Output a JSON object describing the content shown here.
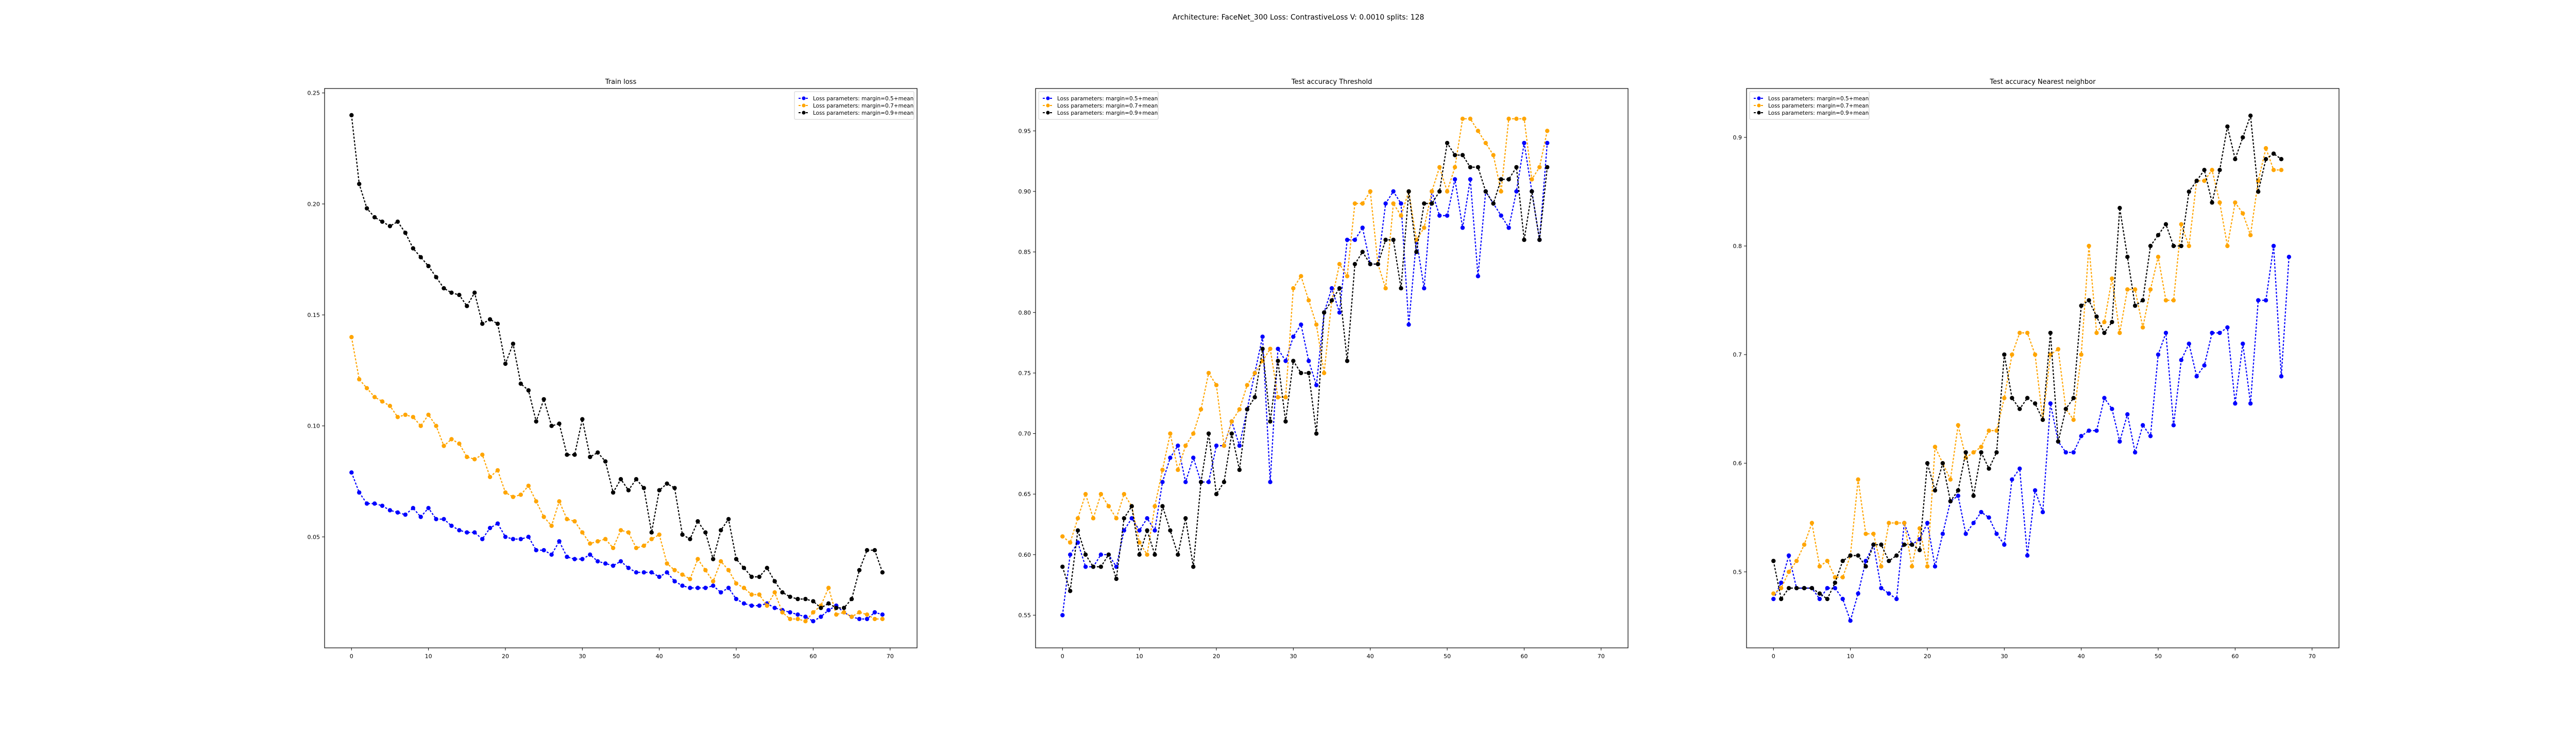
{
  "figure": {
    "suptitle": "Architecture: FaceNet_300 Loss: ContrastiveLoss V: 0.0010 splits: 128"
  },
  "chart_data": [
    {
      "type": "line",
      "title": "Train loss",
      "xlabel": "",
      "ylabel": "",
      "xlim": [
        -3.5,
        73.5
      ],
      "ylim": [
        0.0,
        0.252
      ],
      "xticks": [
        0,
        10,
        20,
        30,
        40,
        50,
        60,
        70
      ],
      "yticks": [
        0.05,
        0.1,
        0.15,
        0.2,
        0.25
      ],
      "ytick_format": 2,
      "legend": "top-right",
      "grid": false,
      "series": [
        {
          "name": "Loss parameters: margin=0.5+mean",
          "color": "#0000ff",
          "values": [
            0.079,
            0.07,
            0.065,
            0.065,
            0.064,
            0.062,
            0.061,
            0.06,
            0.063,
            0.059,
            0.063,
            0.058,
            0.058,
            0.055,
            0.053,
            0.052,
            0.052,
            0.049,
            0.054,
            0.056,
            0.05,
            0.049,
            0.049,
            0.05,
            0.044,
            0.044,
            0.042,
            0.048,
            0.041,
            0.04,
            0.04,
            0.042,
            0.039,
            0.038,
            0.037,
            0.039,
            0.036,
            0.034,
            0.034,
            0.034,
            0.032,
            0.034,
            0.03,
            0.028,
            0.027,
            0.027,
            0.027,
            0.028,
            0.025,
            0.027,
            0.022,
            0.02,
            0.019,
            0.019,
            0.02,
            0.018,
            0.017,
            0.016,
            0.015,
            0.014,
            0.012,
            0.014,
            0.017,
            0.019,
            0.016,
            0.014,
            0.013,
            0.013,
            0.016,
            0.015
          ]
        },
        {
          "name": "Loss parameters: margin=0.7+mean",
          "color": "#ffa500",
          "values": [
            0.14,
            0.121,
            0.117,
            0.113,
            0.111,
            0.109,
            0.104,
            0.105,
            0.104,
            0.1,
            0.105,
            0.1,
            0.091,
            0.094,
            0.092,
            0.086,
            0.085,
            0.087,
            0.077,
            0.08,
            0.07,
            0.068,
            0.069,
            0.073,
            0.066,
            0.059,
            0.055,
            0.066,
            0.058,
            0.057,
            0.052,
            0.047,
            0.048,
            0.049,
            0.045,
            0.053,
            0.052,
            0.045,
            0.046,
            0.049,
            0.051,
            0.038,
            0.035,
            0.033,
            0.031,
            0.04,
            0.035,
            0.03,
            0.039,
            0.035,
            0.029,
            0.027,
            0.024,
            0.024,
            0.019,
            0.025,
            0.016,
            0.013,
            0.013,
            0.012,
            0.016,
            0.019,
            0.027,
            0.015,
            0.016,
            0.014,
            0.016,
            0.015,
            0.013,
            0.013
          ]
        },
        {
          "name": "Loss parameters: margin=0.9+mean",
          "color": "#000000",
          "values": [
            0.24,
            0.209,
            0.198,
            0.194,
            0.192,
            0.19,
            0.192,
            0.187,
            0.18,
            0.176,
            0.172,
            0.167,
            0.162,
            0.16,
            0.159,
            0.154,
            0.16,
            0.146,
            0.148,
            0.146,
            0.128,
            0.137,
            0.119,
            0.116,
            0.102,
            0.112,
            0.1,
            0.101,
            0.087,
            0.087,
            0.103,
            0.086,
            0.088,
            0.084,
            0.07,
            0.076,
            0.071,
            0.076,
            0.072,
            0.052,
            0.071,
            0.074,
            0.072,
            0.051,
            0.049,
            0.057,
            0.052,
            0.04,
            0.053,
            0.058,
            0.04,
            0.036,
            0.032,
            0.032,
            0.036,
            0.03,
            0.025,
            0.023,
            0.022,
            0.022,
            0.021,
            0.018,
            0.02,
            0.018,
            0.018,
            0.022,
            0.035,
            0.044,
            0.044,
            0.034
          ]
        }
      ]
    },
    {
      "type": "line",
      "title": "Test accuracy Threshold",
      "xlabel": "",
      "ylabel": "",
      "xlim": [
        -3.5,
        73.5
      ],
      "ylim": [
        0.523,
        0.985
      ],
      "xticks": [
        0,
        10,
        20,
        30,
        40,
        50,
        60,
        70
      ],
      "yticks": [
        0.55,
        0.6,
        0.65,
        0.7,
        0.75,
        0.8,
        0.85,
        0.9,
        0.95
      ],
      "ytick_format": 2,
      "legend": "top-left",
      "grid": false,
      "series": [
        {
          "name": "Loss parameters: margin=0.5+mean",
          "color": "#0000ff",
          "values": [
            0.55,
            0.6,
            0.61,
            0.59,
            0.59,
            0.6,
            0.6,
            0.59,
            0.62,
            0.63,
            0.62,
            0.63,
            0.62,
            0.66,
            0.68,
            0.69,
            0.66,
            0.68,
            0.66,
            0.66,
            0.69,
            0.69,
            0.71,
            0.69,
            0.72,
            0.75,
            0.78,
            0.66,
            0.77,
            0.76,
            0.78,
            0.79,
            0.76,
            0.74,
            0.8,
            0.82,
            0.8,
            0.86,
            0.86,
            0.87,
            0.84,
            0.84,
            0.89,
            0.9,
            0.89,
            0.79,
            0.86,
            0.82,
            0.9,
            0.88,
            0.88,
            0.91,
            0.87,
            0.91,
            0.83,
            0.9,
            0.89,
            0.88,
            0.87,
            0.9,
            0.94,
            0.9,
            0.86,
            0.94
          ]
        },
        {
          "name": "Loss parameters: margin=0.7+mean",
          "color": "#ffa500",
          "values": [
            0.615,
            0.61,
            0.63,
            0.65,
            0.63,
            0.65,
            0.64,
            0.63,
            0.65,
            0.64,
            0.61,
            0.6,
            0.64,
            0.67,
            0.7,
            0.67,
            0.69,
            0.7,
            0.72,
            0.75,
            0.74,
            0.69,
            0.71,
            0.72,
            0.74,
            0.75,
            0.76,
            0.77,
            0.73,
            0.73,
            0.82,
            0.83,
            0.81,
            0.79,
            0.75,
            0.81,
            0.84,
            0.83,
            0.89,
            0.89,
            0.9,
            0.84,
            0.82,
            0.89,
            0.88,
            0.9,
            0.86,
            0.87,
            0.9,
            0.92,
            0.9,
            0.92,
            0.96,
            0.96,
            0.95,
            0.94,
            0.93,
            0.9,
            0.96,
            0.96,
            0.96,
            0.91,
            0.92,
            0.95
          ]
        },
        {
          "name": "Loss parameters: margin=0.9+mean",
          "color": "#000000",
          "values": [
            0.59,
            0.57,
            0.62,
            0.6,
            0.59,
            0.59,
            0.6,
            0.58,
            0.63,
            0.64,
            0.6,
            0.62,
            0.6,
            0.64,
            0.62,
            0.6,
            0.63,
            0.59,
            0.66,
            0.7,
            0.65,
            0.66,
            0.7,
            0.67,
            0.72,
            0.73,
            0.77,
            0.71,
            0.76,
            0.71,
            0.76,
            0.75,
            0.75,
            0.7,
            0.8,
            0.81,
            0.82,
            0.76,
            0.84,
            0.85,
            0.84,
            0.84,
            0.86,
            0.86,
            0.82,
            0.9,
            0.85,
            0.89,
            0.89,
            0.9,
            0.94,
            0.93,
            0.93,
            0.92,
            0.92,
            0.9,
            0.89,
            0.91,
            0.91,
            0.92,
            0.86,
            0.9,
            0.86,
            0.92
          ]
        }
      ]
    },
    {
      "type": "line",
      "title": "Test accuracy Nearest neighbor",
      "xlabel": "",
      "ylabel": "",
      "xlim": [
        -3.5,
        73.5
      ],
      "ylim": [
        0.43,
        0.945
      ],
      "xticks": [
        0,
        10,
        20,
        30,
        40,
        50,
        60,
        70
      ],
      "yticks": [
        0.5,
        0.6,
        0.7,
        0.8,
        0.9
      ],
      "ytick_format": 1,
      "legend": "top-left",
      "grid": false,
      "series": [
        {
          "name": "Loss parameters: margin=0.5+mean",
          "color": "#0000ff",
          "values": [
            0.475,
            0.49,
            0.515,
            0.485,
            0.485,
            0.485,
            0.475,
            0.485,
            0.485,
            0.475,
            0.455,
            0.48,
            0.51,
            0.525,
            0.485,
            0.48,
            0.475,
            0.545,
            0.525,
            0.53,
            0.545,
            0.505,
            0.535,
            0.565,
            0.57,
            0.535,
            0.545,
            0.555,
            0.55,
            0.535,
            0.525,
            0.585,
            0.595,
            0.515,
            0.575,
            0.555,
            0.655,
            0.62,
            0.61,
            0.61,
            0.625,
            0.63,
            0.63,
            0.66,
            0.65,
            0.62,
            0.645,
            0.61,
            0.635,
            0.625,
            0.7,
            0.72,
            0.635,
            0.695,
            0.71,
            0.68,
            0.69,
            0.72,
            0.72,
            0.725,
            0.655,
            0.71,
            0.655,
            0.75,
            0.75,
            0.8,
            0.68,
            0.79
          ]
        },
        {
          "name": "Loss parameters: margin=0.7+mean",
          "color": "#ffa500",
          "values": [
            0.48,
            0.485,
            0.5,
            0.51,
            0.525,
            0.545,
            0.505,
            0.51,
            0.495,
            0.495,
            0.515,
            0.585,
            0.535,
            0.535,
            0.505,
            0.545,
            0.545,
            0.545,
            0.505,
            0.54,
            0.505,
            0.615,
            0.6,
            0.585,
            0.635,
            0.605,
            0.61,
            0.615,
            0.63,
            0.63,
            0.66,
            0.7,
            0.72,
            0.72,
            0.7,
            0.64,
            0.7,
            0.705,
            0.65,
            0.64,
            0.7,
            0.8,
            0.72,
            0.73,
            0.77,
            0.72,
            0.76,
            0.76,
            0.725,
            0.76,
            0.79,
            0.75,
            0.75,
            0.82,
            0.8,
            0.86,
            0.86,
            0.87,
            0.84,
            0.8,
            0.84,
            0.83,
            0.81,
            0.86,
            0.89,
            0.87,
            0.87
          ]
        },
        {
          "name": "Loss parameters: margin=0.9+mean",
          "color": "#000000",
          "values": [
            0.51,
            0.475,
            0.485,
            0.485,
            0.485,
            0.485,
            0.48,
            0.475,
            0.49,
            0.51,
            0.515,
            0.515,
            0.505,
            0.525,
            0.525,
            0.51,
            0.515,
            0.525,
            0.525,
            0.52,
            0.6,
            0.575,
            0.6,
            0.565,
            0.575,
            0.61,
            0.57,
            0.61,
            0.595,
            0.61,
            0.7,
            0.66,
            0.65,
            0.66,
            0.655,
            0.64,
            0.72,
            0.62,
            0.65,
            0.66,
            0.745,
            0.75,
            0.735,
            0.72,
            0.73,
            0.835,
            0.79,
            0.745,
            0.75,
            0.8,
            0.81,
            0.82,
            0.8,
            0.8,
            0.85,
            0.86,
            0.87,
            0.84,
            0.87,
            0.91,
            0.88,
            0.9,
            0.92,
            0.85,
            0.88,
            0.885,
            0.88
          ]
        }
      ]
    }
  ]
}
